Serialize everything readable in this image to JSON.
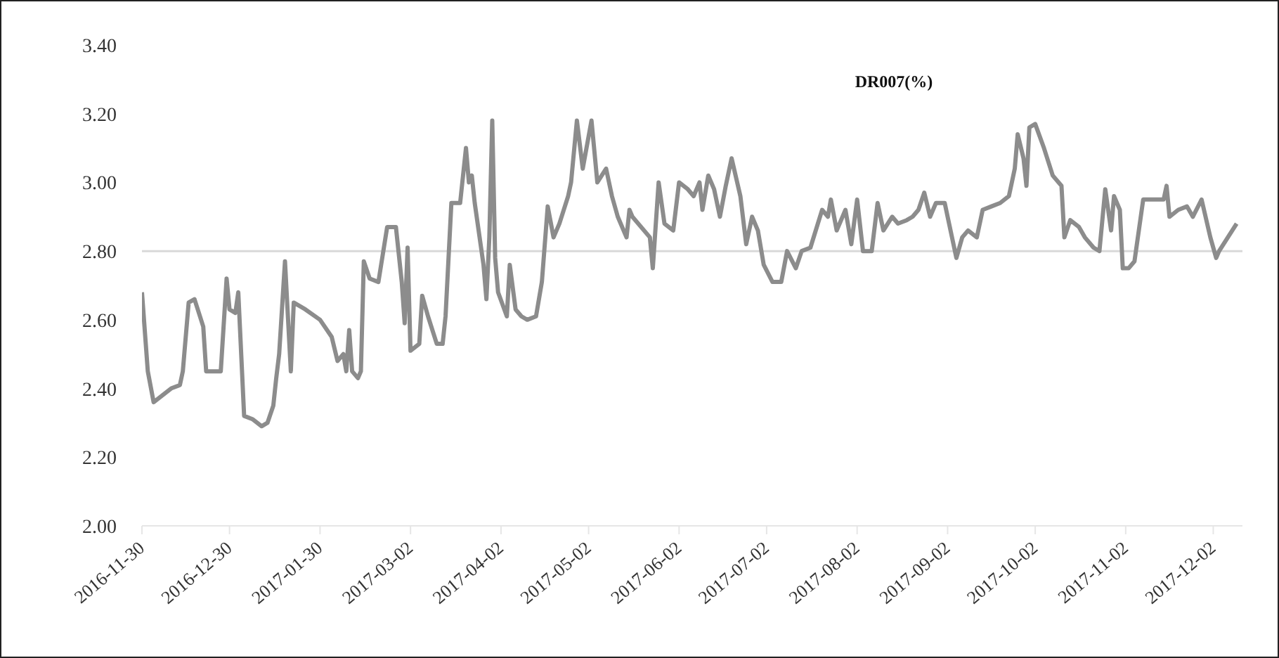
{
  "chart_data": {
    "type": "line",
    "title": "DR007(%)",
    "x": [
      "2016-11-30",
      "2016-12-02",
      "2016-12-04",
      "2016-12-07",
      "2016-12-10",
      "2016-12-13",
      "2016-12-14",
      "2016-12-16",
      "2016-12-18",
      "2016-12-21",
      "2016-12-22",
      "2016-12-27",
      "2016-12-29",
      "2016-12-30",
      "2017-01-01",
      "2017-01-02",
      "2017-01-04",
      "2017-01-07",
      "2017-01-10",
      "2017-01-12",
      "2017-01-14",
      "2017-01-15",
      "2017-01-16",
      "2017-01-18",
      "2017-01-20",
      "2017-01-21",
      "2017-01-25",
      "2017-01-30",
      "2017-02-03",
      "2017-02-05",
      "2017-02-07",
      "2017-02-08",
      "2017-02-09",
      "2017-02-10",
      "2017-02-12",
      "2017-02-13",
      "2017-02-14",
      "2017-02-16",
      "2017-02-19",
      "2017-02-22",
      "2017-02-25",
      "2017-02-27",
      "2017-02-28",
      "2017-03-01",
      "2017-03-02",
      "2017-03-05",
      "2017-03-06",
      "2017-03-08",
      "2017-03-11",
      "2017-03-13",
      "2017-03-14",
      "2017-03-16",
      "2017-03-19",
      "2017-03-21",
      "2017-03-22",
      "2017-03-23",
      "2017-03-24",
      "2017-03-27",
      "2017-03-28",
      "2017-03-29",
      "2017-03-30",
      "2017-03-31",
      "2017-04-01",
      "2017-04-04",
      "2017-04-05",
      "2017-04-07",
      "2017-04-09",
      "2017-04-11",
      "2017-04-14",
      "2017-04-16",
      "2017-04-18",
      "2017-04-20",
      "2017-04-22",
      "2017-04-25",
      "2017-04-26",
      "2017-04-28",
      "2017-04-30",
      "2017-05-03",
      "2017-05-05",
      "2017-05-08",
      "2017-05-10",
      "2017-05-12",
      "2017-05-15",
      "2017-05-16",
      "2017-05-17",
      "2017-05-23",
      "2017-05-24",
      "2017-05-26",
      "2017-05-28",
      "2017-05-31",
      "2017-06-02",
      "2017-06-05",
      "2017-06-07",
      "2017-06-09",
      "2017-06-10",
      "2017-06-12",
      "2017-06-14",
      "2017-06-16",
      "2017-06-18",
      "2017-06-20",
      "2017-06-23",
      "2017-06-25",
      "2017-06-27",
      "2017-06-29",
      "2017-07-01",
      "2017-07-04",
      "2017-07-07",
      "2017-07-09",
      "2017-07-12",
      "2017-07-14",
      "2017-07-17",
      "2017-07-21",
      "2017-07-23",
      "2017-07-24",
      "2017-07-26",
      "2017-07-29",
      "2017-07-31",
      "2017-08-02",
      "2017-08-04",
      "2017-08-07",
      "2017-08-09",
      "2017-08-11",
      "2017-08-14",
      "2017-08-16",
      "2017-08-19",
      "2017-08-21",
      "2017-08-23",
      "2017-08-25",
      "2017-08-27",
      "2017-08-29",
      "2017-09-01",
      "2017-09-02",
      "2017-09-05",
      "2017-09-07",
      "2017-09-09",
      "2017-09-12",
      "2017-09-14",
      "2017-09-17",
      "2017-09-20",
      "2017-09-23",
      "2017-09-25",
      "2017-09-26",
      "2017-09-28",
      "2017-09-29",
      "2017-09-30",
      "2017-10-02",
      "2017-10-05",
      "2017-10-08",
      "2017-10-11",
      "2017-10-12",
      "2017-10-14",
      "2017-10-17",
      "2017-10-19",
      "2017-10-22",
      "2017-10-24",
      "2017-10-26",
      "2017-10-28",
      "2017-10-29",
      "2017-10-31",
      "2017-11-01",
      "2017-11-03",
      "2017-11-05",
      "2017-11-08",
      "2017-11-10",
      "2017-11-15",
      "2017-11-16",
      "2017-11-17",
      "2017-11-20",
      "2017-11-23",
      "2017-11-25",
      "2017-11-28",
      "2017-12-01",
      "2017-12-03",
      "2017-12-04",
      "2017-12-07",
      "2017-12-10"
    ],
    "series": [
      {
        "color": "#8c8c8c",
        "values": [
          2.68,
          2.45,
          2.36,
          2.38,
          2.4,
          2.41,
          2.45,
          2.65,
          2.66,
          2.58,
          2.45,
          2.45,
          2.72,
          2.63,
          2.62,
          2.68,
          2.32,
          2.31,
          2.29,
          2.3,
          2.35,
          2.43,
          2.5,
          2.77,
          2.45,
          2.65,
          2.63,
          2.6,
          2.55,
          2.48,
          2.5,
          2.45,
          2.57,
          2.45,
          2.43,
          2.45,
          2.77,
          2.72,
          2.71,
          2.87,
          2.87,
          2.71,
          2.59,
          2.81,
          2.51,
          2.53,
          2.67,
          2.61,
          2.53,
          2.53,
          2.61,
          2.94,
          2.94,
          3.1,
          3.0,
          3.02,
          2.94,
          2.76,
          2.66,
          2.84,
          3.18,
          2.78,
          2.68,
          2.61,
          2.76,
          2.63,
          2.61,
          2.6,
          2.61,
          2.71,
          2.93,
          2.84,
          2.88,
          2.96,
          3.0,
          3.18,
          3.04,
          3.18,
          3.0,
          3.04,
          2.96,
          2.9,
          2.84,
          2.92,
          2.9,
          2.84,
          2.75,
          3.0,
          2.88,
          2.86,
          3.0,
          2.98,
          2.96,
          3.0,
          2.92,
          3.02,
          2.98,
          2.9,
          2.99,
          3.07,
          2.96,
          2.82,
          2.9,
          2.86,
          2.76,
          2.71,
          2.71,
          2.8,
          2.75,
          2.8,
          2.81,
          2.92,
          2.9,
          2.95,
          2.86,
          2.92,
          2.82,
          2.95,
          2.8,
          2.8,
          2.94,
          2.86,
          2.9,
          2.88,
          2.89,
          2.9,
          2.92,
          2.97,
          2.9,
          2.94,
          2.94,
          2.9,
          2.78,
          2.84,
          2.86,
          2.84,
          2.92,
          2.93,
          2.94,
          2.96,
          3.04,
          3.14,
          3.07,
          2.99,
          3.16,
          3.17,
          3.1,
          3.02,
          2.99,
          2.84,
          2.89,
          2.87,
          2.84,
          2.81,
          2.8,
          2.98,
          2.86,
          2.96,
          2.92,
          2.75,
          2.75,
          2.77,
          2.95,
          2.95,
          2.95,
          2.99,
          2.9,
          2.92,
          2.93,
          2.9,
          2.95,
          2.84,
          2.78,
          2.8,
          2.84,
          2.88
        ]
      }
    ],
    "xlim": [
      "2016-11-30",
      "2017-12-12"
    ],
    "xticks": [
      "2016-11-30",
      "2016-12-30",
      "2017-01-30",
      "2017-03-02",
      "2017-04-02",
      "2017-05-02",
      "2017-06-02",
      "2017-07-02",
      "2017-08-02",
      "2017-09-02",
      "2017-10-02",
      "2017-11-02",
      "2017-12-02"
    ],
    "ylim": [
      2.0,
      3.4
    ],
    "yticks": [
      {
        "value": 2.0,
        "label": "2.00"
      },
      {
        "value": 2.2,
        "label": "2.20"
      },
      {
        "value": 2.4,
        "label": "2.40"
      },
      {
        "value": 2.6,
        "label": "2.60"
      },
      {
        "value": 2.8,
        "label": "2.80"
      },
      {
        "value": 3.0,
        "label": "3.00"
      },
      {
        "value": 3.2,
        "label": "3.20"
      },
      {
        "value": 3.4,
        "label": "3.40"
      }
    ],
    "ref_lines": [
      {
        "axis": "y",
        "value": 2.8,
        "color": "#d9d9d9"
      }
    ],
    "grid": false,
    "legend": false,
    "marker": "none",
    "line_style": "solid"
  }
}
